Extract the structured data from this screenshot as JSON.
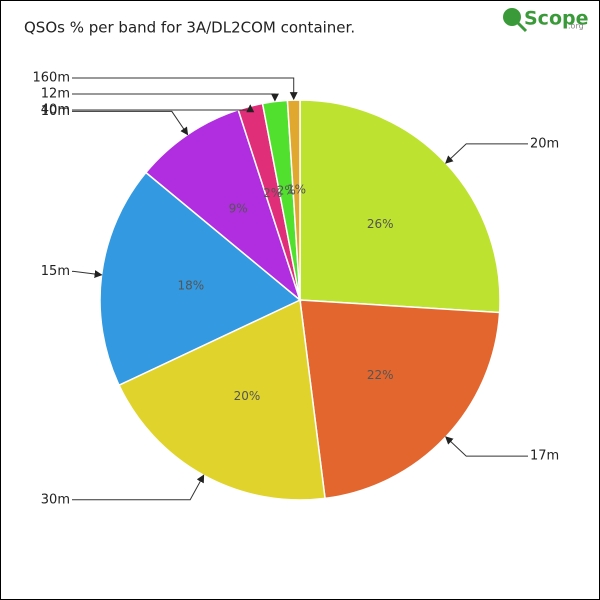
{
  "chart_data": {
    "type": "pie",
    "title": "QSOs % per band for 3A/DL2COM container.",
    "logo": "Scope",
    "logo_suffix": ".org",
    "categories": [
      "20m",
      "17m",
      "30m",
      "15m",
      "10m",
      "40m",
      "12m",
      "160m"
    ],
    "values": [
      26,
      22,
      20,
      18,
      9,
      2,
      2,
      1
    ],
    "value_labels": [
      "26%",
      "22%",
      "20%",
      "18%",
      "9%",
      "2%",
      "2%",
      "1%"
    ],
    "colors": [
      "#bde22f",
      "#e2662e",
      "#e0d42c",
      "#3399e0",
      "#b02ee0",
      "#e02e78",
      "#52e02e",
      "#e0a82e"
    ]
  }
}
